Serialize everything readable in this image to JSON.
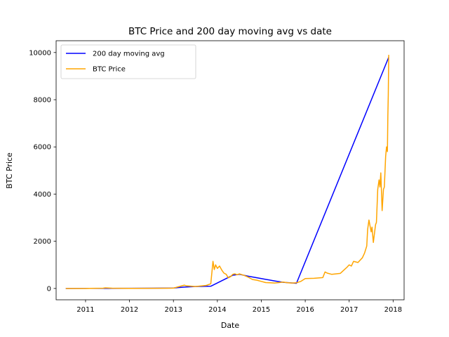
{
  "chart_data": {
    "type": "line",
    "title": "BTC Price and 200 day moving avg vs date",
    "xlabel": "Date",
    "ylabel": "BTC Price",
    "xlim": [
      2010.33,
      2018.25
    ],
    "ylim": [
      -480,
      10500
    ],
    "xticks": [
      2011,
      2012,
      2013,
      2014,
      2015,
      2016,
      2017,
      2018
    ],
    "xtick_labels": [
      "2011",
      "2012",
      "2013",
      "2014",
      "2015",
      "2016",
      "2017",
      "2018"
    ],
    "yticks": [
      0,
      2000,
      4000,
      6000,
      8000,
      10000
    ],
    "ytick_labels": [
      "0",
      "2000",
      "4000",
      "6000",
      "8000",
      "10000"
    ],
    "grid": false,
    "legend_position": "top-left",
    "series": [
      {
        "name": "200 day moving avg",
        "color": "#0000ff",
        "x": [
          2010.55,
          2011.0,
          2011.5,
          2012.0,
          2012.5,
          2013.0,
          2013.25,
          2013.5,
          2013.85,
          2014.35,
          2014.5,
          2014.7,
          2015.0,
          2015.3,
          2015.5,
          2015.8,
          2017.9
        ],
        "y": [
          0,
          2,
          5,
          8,
          10,
          20,
          60,
          80,
          95,
          560,
          600,
          520,
          420,
          320,
          260,
          220,
          9800
        ]
      },
      {
        "name": "BTC Price",
        "color": "#ffa500",
        "x": [
          2010.55,
          2011.0,
          2011.4,
          2011.45,
          2011.6,
          2012.0,
          2012.5,
          2012.9,
          2013.0,
          2013.25,
          2013.3,
          2013.4,
          2013.5,
          2013.75,
          2013.85,
          2013.9,
          2013.93,
          2013.96,
          2014.0,
          2014.05,
          2014.1,
          2014.15,
          2014.2,
          2014.25,
          2014.3,
          2014.35,
          2014.4,
          2014.45,
          2014.5,
          2014.6,
          2014.7,
          2014.8,
          2014.9,
          2015.0,
          2015.1,
          2015.2,
          2015.3,
          2015.4,
          2015.5,
          2015.6,
          2015.7,
          2015.8,
          2015.9,
          2016.0,
          2016.2,
          2016.4,
          2016.45,
          2016.5,
          2016.6,
          2016.8,
          2016.95,
          2017.0,
          2017.05,
          2017.1,
          2017.2,
          2017.3,
          2017.35,
          2017.4,
          2017.42,
          2017.45,
          2017.5,
          2017.52,
          2017.55,
          2017.6,
          2017.62,
          2017.65,
          2017.68,
          2017.7,
          2017.72,
          2017.75,
          2017.78,
          2017.8,
          2017.83,
          2017.85,
          2017.87,
          2017.88,
          2017.89,
          2017.9
        ],
        "y": [
          0,
          1,
          10,
          25,
          12,
          5,
          7,
          12,
          15,
          140,
          110,
          95,
          80,
          130,
          200,
          1150,
          800,
          1000,
          850,
          950,
          780,
          650,
          600,
          450,
          500,
          600,
          620,
          580,
          620,
          560,
          480,
          380,
          350,
          300,
          250,
          240,
          230,
          250,
          270,
          240,
          230,
          240,
          300,
          420,
          430,
          460,
          700,
          650,
          600,
          640,
          900,
          1000,
          950,
          1150,
          1100,
          1300,
          1500,
          1800,
          2500,
          2900,
          2400,
          2600,
          1950,
          2700,
          2800,
          4200,
          4600,
          4300,
          4900,
          3300,
          4200,
          4300,
          5600,
          6000,
          5800,
          7300,
          8200,
          9900
        ]
      }
    ]
  }
}
